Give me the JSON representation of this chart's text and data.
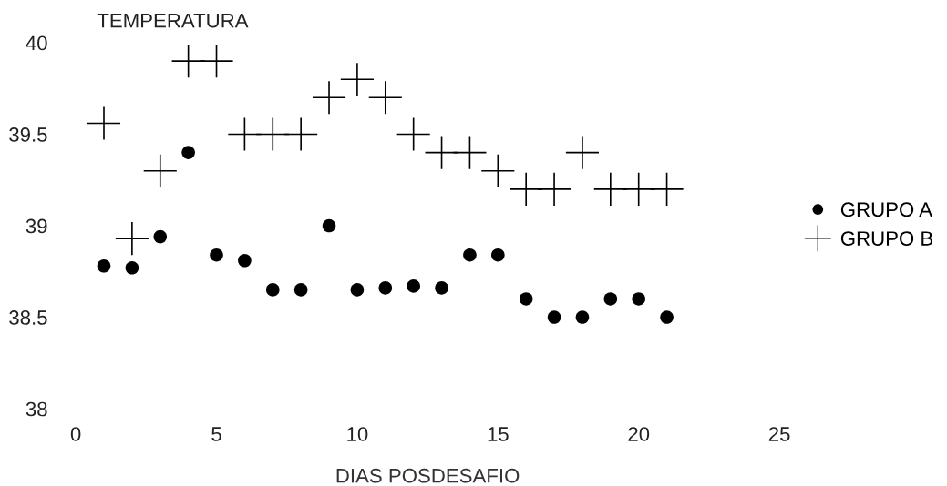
{
  "chart_data": {
    "type": "scatter",
    "ylabel": "TEMPERATURA",
    "xlabel": "DIAS POSDESAFIO",
    "x": [
      1,
      2,
      3,
      4,
      5,
      6,
      7,
      8,
      9,
      10,
      11,
      12,
      13,
      14,
      15,
      16,
      17,
      18,
      19,
      20,
      21
    ],
    "series": [
      {
        "name": "GRUPO A",
        "color": "#000000",
        "marker": "circle",
        "values": [
          38.78,
          38.77,
          38.94,
          39.4,
          38.84,
          38.81,
          38.65,
          38.65,
          39.0,
          38.65,
          38.66,
          38.67,
          38.66,
          38.84,
          38.84,
          38.6,
          38.5,
          38.5,
          38.6,
          38.6,
          38.5
        ]
      },
      {
        "name": "GRUPO B",
        "color": "#000000",
        "marker": "cross",
        "values": [
          39.56,
          38.93,
          39.3,
          39.9,
          39.9,
          39.5,
          39.5,
          39.5,
          39.7,
          39.8,
          39.7,
          39.5,
          39.4,
          39.4,
          39.3,
          39.2,
          39.2,
          39.4,
          39.2,
          39.2,
          39.2
        ]
      }
    ],
    "xlim": [
      0,
      25
    ],
    "xticks": [
      0,
      5,
      10,
      15,
      20,
      25
    ],
    "ylim": [
      38,
      40
    ],
    "yticks": [
      38,
      38.5,
      39,
      39.5,
      40
    ],
    "grid": false,
    "legend": "right"
  }
}
